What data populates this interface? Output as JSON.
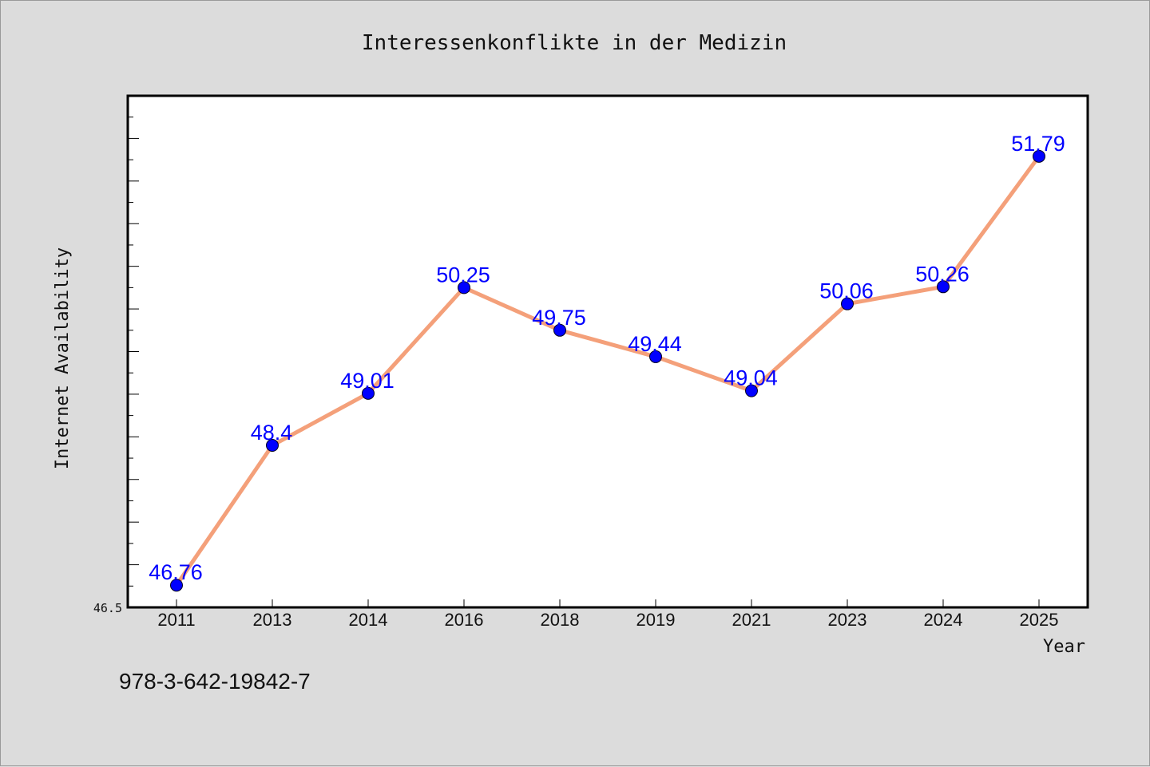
{
  "footer_text": "978-3-642-19842-7",
  "colors": {
    "background": "#dcdcdc",
    "plot_area": "#ffffff",
    "line": "#f4a07a",
    "marker": "#0000ff",
    "data_label": "#0000ff"
  },
  "chart_data": {
    "type": "line",
    "title": "Interessenkonflikte in der Medizin",
    "xlabel": "Year",
    "ylabel": "Internet Availability",
    "categories": [
      "2011",
      "2013",
      "2014",
      "2016",
      "2018",
      "2019",
      "2021",
      "2023",
      "2024",
      "2025"
    ],
    "series": [
      {
        "values": [
          46.76,
          48.4,
          49.01,
          50.25,
          49.75,
          49.44,
          49.04,
          50.06,
          50.26,
          51.79
        ],
        "labels": [
          "46.76",
          "48.4",
          "49.01",
          "50.25",
          "49.75",
          "49.44",
          "49.04",
          "50.06",
          "50.26",
          "51.79"
        ]
      }
    ],
    "ylim": [
      46.5,
      52.5
    ],
    "y_tick_labels": [
      "46.5"
    ],
    "grid": false,
    "legend": "none"
  }
}
